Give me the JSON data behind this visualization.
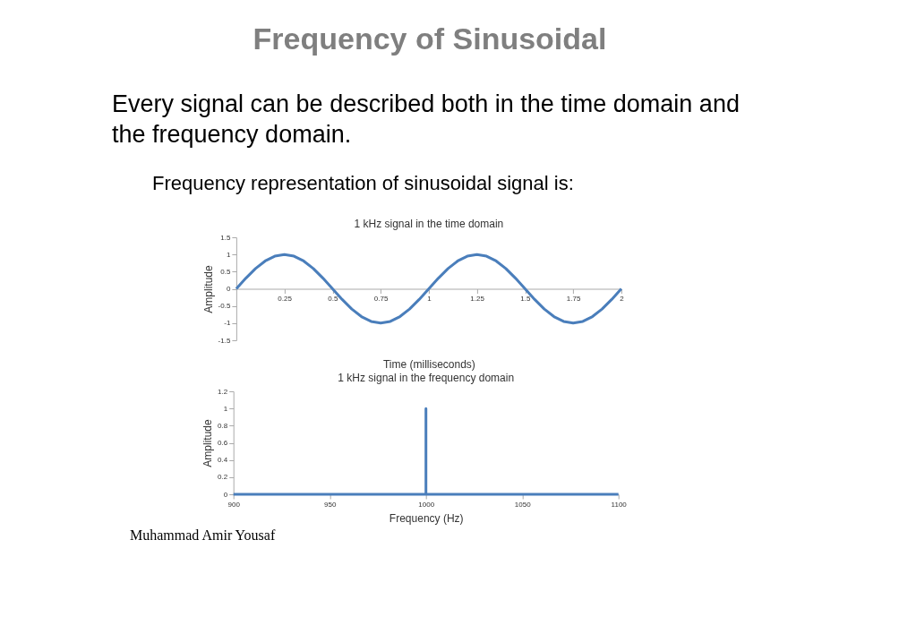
{
  "chart_data": [
    {
      "type": "line",
      "title": "1 kHz signal in the time domain",
      "xlabel": "Time (milliseconds)",
      "ylabel": "Amplitude",
      "annotations": [
        "Frequency of Sinusoidal",
        "Every signal can be described both in the time domain and the frequency domain.",
        "Frequency representation of sinusoidal signal is:"
      ],
      "x": [
        0,
        0.05,
        0.1,
        0.15,
        0.2,
        0.25,
        0.3,
        0.35,
        0.4,
        0.45,
        0.5,
        0.55,
        0.6,
        0.65,
        0.7,
        0.75,
        0.8,
        0.85,
        0.9,
        0.95,
        1,
        1.05,
        1.1,
        1.15,
        1.2,
        1.25,
        1.3,
        1.35,
        1.4,
        1.45,
        1.5,
        1.55,
        1.6,
        1.65,
        1.7,
        1.75,
        1.8,
        1.85,
        1.9,
        1.95,
        2
      ],
      "series": [
        {
          "color": "#4a7ebb",
          "values": [
            0,
            0.31,
            0.59,
            0.81,
            0.95,
            1,
            0.95,
            0.81,
            0.59,
            0.31,
            0,
            -0.31,
            -0.59,
            -0.81,
            -0.95,
            -1,
            -0.95,
            -0.81,
            -0.59,
            -0.31,
            0,
            0.31,
            0.59,
            0.81,
            0.95,
            1,
            0.95,
            0.81,
            0.59,
            0.31,
            0,
            -0.31,
            -0.59,
            -0.81,
            -0.95,
            -1,
            -0.95,
            -0.81,
            -0.59,
            -0.31,
            0
          ]
        }
      ],
      "xlim": [
        0,
        2
      ],
      "xticks": [
        0.25,
        0.5,
        0.75,
        1,
        1.25,
        1.5,
        1.75,
        2
      ],
      "ylim": [
        -1.5,
        1.5
      ],
      "yticks": [
        -1.5,
        -1,
        -0.5,
        0,
        0.5,
        1,
        1.5
      ],
      "grid": false
    },
    {
      "type": "line",
      "title": "1 kHz signal in the frequency domain",
      "xlabel": "Frequency (Hz)",
      "ylabel": "Amplitude",
      "annotations": [
        "Muhammad Amir Yousaf"
      ],
      "x": [
        900,
        1000,
        1000,
        1000,
        1100
      ],
      "series": [
        {
          "color": "#4a7ebb",
          "values": [
            0,
            0,
            1,
            0,
            0
          ]
        }
      ],
      "xlim": [
        900,
        1100
      ],
      "xticks": [
        900,
        950,
        1000,
        1050,
        1100
      ],
      "ylim": [
        0,
        1.2
      ],
      "yticks": [
        0,
        0.2,
        0.4,
        0.6,
        0.8,
        1,
        1.2
      ],
      "grid": false
    }
  ]
}
